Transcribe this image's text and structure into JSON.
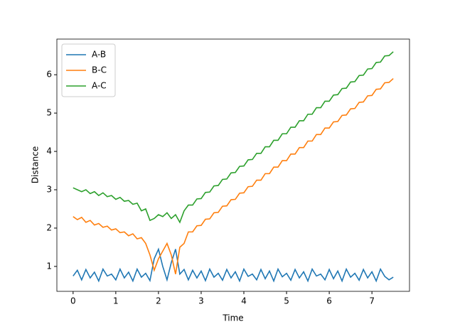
{
  "chart_data": {
    "type": "line",
    "xlabel": "Time",
    "ylabel": "Distance",
    "xlim": [
      -0.38,
      7.88
    ],
    "ylim": [
      0.35,
      6.93
    ],
    "xticks": [
      0,
      1,
      2,
      3,
      4,
      5,
      6,
      7
    ],
    "yticks": [
      1,
      2,
      3,
      4,
      5,
      6
    ],
    "legend": "upper left",
    "x": [
      0,
      0.1,
      0.2,
      0.3,
      0.4,
      0.5,
      0.6,
      0.7,
      0.8,
      0.9,
      1.0,
      1.1,
      1.2,
      1.3,
      1.4,
      1.5,
      1.6,
      1.7,
      1.8,
      1.9,
      2.0,
      2.1,
      2.2,
      2.3,
      2.4,
      2.5,
      2.6,
      2.7,
      2.8,
      2.9,
      3.0,
      3.1,
      3.2,
      3.3,
      3.4,
      3.5,
      3.6,
      3.7,
      3.8,
      3.9,
      4.0,
      4.1,
      4.2,
      4.3,
      4.4,
      4.5,
      4.6,
      4.7,
      4.8,
      4.9,
      5.0,
      5.1,
      5.2,
      5.3,
      5.4,
      5.5,
      5.6,
      5.7,
      5.8,
      5.9,
      6.0,
      6.1,
      6.2,
      6.3,
      6.4,
      6.5,
      6.6,
      6.7,
      6.8,
      6.9,
      7.0,
      7.1,
      7.2,
      7.3,
      7.4,
      7.5
    ],
    "series": [
      {
        "name": "A-B",
        "color": "#1f77b4",
        "values": [
          0.75,
          0.9,
          0.65,
          0.92,
          0.7,
          0.85,
          0.62,
          0.93,
          0.75,
          0.8,
          0.65,
          0.93,
          0.7,
          0.85,
          0.62,
          0.93,
          0.72,
          0.82,
          0.63,
          1.2,
          1.45,
          1.0,
          0.65,
          1.1,
          1.45,
          0.8,
          0.92,
          0.65,
          0.9,
          0.7,
          0.88,
          0.63,
          0.93,
          0.72,
          0.82,
          0.64,
          0.92,
          0.7,
          0.86,
          0.62,
          0.93,
          0.74,
          0.8,
          0.65,
          0.92,
          0.68,
          0.88,
          0.62,
          0.93,
          0.73,
          0.82,
          0.64,
          0.92,
          0.7,
          0.86,
          0.62,
          0.93,
          0.75,
          0.8,
          0.65,
          0.92,
          0.68,
          0.88,
          0.62,
          0.93,
          0.72,
          0.82,
          0.64,
          0.92,
          0.7,
          0.86,
          0.62,
          0.93,
          0.74,
          0.65,
          0.72
        ]
      },
      {
        "name": "B-C",
        "color": "#ff7f0e",
        "values": [
          2.3,
          2.22,
          2.28,
          2.15,
          2.2,
          2.08,
          2.12,
          2.02,
          2.05,
          1.95,
          1.98,
          1.88,
          1.9,
          1.8,
          1.85,
          1.72,
          1.75,
          1.6,
          1.3,
          0.9,
          1.2,
          1.4,
          1.6,
          1.3,
          0.8,
          1.5,
          1.6,
          1.9,
          1.9,
          2.06,
          2.07,
          2.23,
          2.24,
          2.4,
          2.41,
          2.57,
          2.58,
          2.74,
          2.75,
          2.91,
          2.92,
          3.08,
          3.09,
          3.25,
          3.25,
          3.42,
          3.42,
          3.59,
          3.59,
          3.76,
          3.76,
          3.93,
          3.93,
          4.1,
          4.1,
          4.27,
          4.27,
          4.44,
          4.44,
          4.61,
          4.61,
          4.77,
          4.78,
          4.94,
          4.95,
          5.11,
          5.12,
          5.28,
          5.29,
          5.45,
          5.46,
          5.62,
          5.63,
          5.79,
          5.8,
          5.9
        ]
      },
      {
        "name": "A-C",
        "color": "#2ca02c",
        "values": [
          3.05,
          3.0,
          2.95,
          3.0,
          2.9,
          2.95,
          2.85,
          2.92,
          2.82,
          2.85,
          2.75,
          2.8,
          2.7,
          2.72,
          2.62,
          2.65,
          2.45,
          2.5,
          2.2,
          2.25,
          2.35,
          2.3,
          2.4,
          2.25,
          2.35,
          2.15,
          2.45,
          2.6,
          2.6,
          2.76,
          2.77,
          2.93,
          2.94,
          3.1,
          3.11,
          3.27,
          3.28,
          3.44,
          3.45,
          3.61,
          3.62,
          3.78,
          3.79,
          3.95,
          3.95,
          4.12,
          4.12,
          4.29,
          4.29,
          4.46,
          4.46,
          4.63,
          4.63,
          4.8,
          4.8,
          4.97,
          4.97,
          5.14,
          5.14,
          5.31,
          5.31,
          5.47,
          5.48,
          5.64,
          5.65,
          5.81,
          5.82,
          5.98,
          5.99,
          6.15,
          6.16,
          6.32,
          6.33,
          6.49,
          6.5,
          6.6
        ]
      }
    ]
  }
}
